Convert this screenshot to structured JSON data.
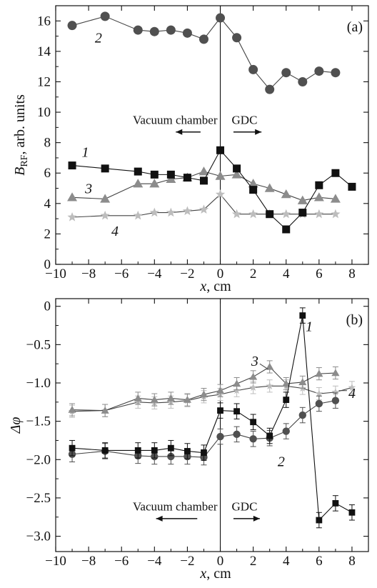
{
  "chart_data": [
    {
      "type": "line",
      "panel_label": "(a)",
      "xlabel": "x, cm",
      "ylabel_main": "B",
      "ylabel_sub": "RF",
      "ylabel_rest": ", arb. units",
      "xlim": [
        -10,
        9
      ],
      "ylim": [
        0,
        17
      ],
      "xticks": [
        -10,
        -8,
        -6,
        -4,
        -2,
        0,
        2,
        4,
        6,
        8
      ],
      "yticks": [
        0,
        2,
        4,
        6,
        8,
        10,
        12,
        14,
        16
      ],
      "xtick_labels": [
        "−10",
        "−8",
        "−6",
        "−4",
        "−2",
        "0",
        "2",
        "4",
        "6",
        "8"
      ],
      "ytick_labels": [
        "0",
        "2",
        "4",
        "6",
        "8",
        "10",
        "12",
        "14",
        "16"
      ],
      "vline_x": 0,
      "annotations": {
        "left_text": "Vacuum chamber",
        "right_text": "GDC",
        "left_arrow_x": [
          -1.2,
          -2.7
        ],
        "right_arrow_x": [
          0.8,
          2.5
        ],
        "text_y": 9.5,
        "arrow_y": 8.7
      },
      "series": [
        {
          "label": "1",
          "marker": "square",
          "color": "#111111",
          "x": [
            -9,
            -7,
            -5,
            -4,
            -3,
            -2,
            -1,
            0,
            1,
            2,
            3,
            4,
            5,
            6,
            7,
            8
          ],
          "y": [
            6.5,
            6.3,
            6.1,
            5.9,
            5.9,
            5.7,
            5.5,
            7.5,
            6.3,
            4.9,
            3.3,
            2.3,
            3.4,
            5.2,
            6.0,
            5.1
          ],
          "label_pos": [
            -8.2,
            7.4
          ]
        },
        {
          "label": "2",
          "marker": "circle",
          "color": "#505050",
          "x": [
            -9,
            -7,
            -5,
            -4,
            -3,
            -2,
            -1,
            0,
            1,
            2,
            3,
            4,
            5,
            6,
            7
          ],
          "y": [
            15.7,
            16.3,
            15.4,
            15.3,
            15.4,
            15.2,
            14.8,
            16.2,
            14.9,
            12.8,
            11.5,
            12.6,
            12.0,
            12.7,
            12.6
          ],
          "label_pos": [
            -7.4,
            14.9
          ]
        },
        {
          "label": "3",
          "marker": "triangle",
          "color": "#8c8c8c",
          "x": [
            -9,
            -7,
            -5,
            -4,
            -3,
            -2,
            -1,
            0,
            1,
            2,
            3,
            4,
            5,
            6,
            7
          ],
          "y": [
            4.4,
            4.3,
            5.3,
            5.3,
            5.6,
            5.7,
            6.1,
            5.8,
            5.9,
            5.3,
            5.0,
            4.6,
            4.2,
            4.4,
            4.3
          ],
          "label_pos": [
            -8.0,
            5.0
          ]
        },
        {
          "label": "4",
          "marker": "star",
          "color": "#bdbdbd",
          "x": [
            -9,
            -7,
            -5,
            -4,
            -3,
            -2,
            -1,
            0,
            1,
            2,
            3,
            4,
            5,
            6,
            7
          ],
          "y": [
            3.1,
            3.2,
            3.2,
            3.4,
            3.4,
            3.5,
            3.6,
            4.6,
            3.3,
            3.3,
            3.3,
            3.3,
            3.3,
            3.3,
            3.3
          ],
          "label_pos": [
            -6.4,
            2.2
          ]
        }
      ]
    },
    {
      "type": "line",
      "panel_label": "(b)",
      "xlabel": "x, cm",
      "ylabel_main": "Δφ",
      "xlim": [
        -10,
        9
      ],
      "ylim": [
        -3.2,
        0.1
      ],
      "xticks": [
        -10,
        -8,
        -6,
        -4,
        -2,
        0,
        2,
        4,
        6,
        8
      ],
      "yticks": [
        0,
        -0.5,
        -1.0,
        -1.5,
        -2.0,
        -2.5,
        -3.0
      ],
      "xtick_labels": [
        "−10",
        "−8",
        "−6",
        "−4",
        "−2",
        "0",
        "2",
        "4",
        "6",
        "8"
      ],
      "ytick_labels": [
        "0",
        "−0.5",
        "−1.0",
        "−1.5",
        "−2.0",
        "−2.5",
        "−3.0"
      ],
      "vline_x": 0,
      "annotations": {
        "left_text": "Vacuum chamber",
        "right_text": "GDC",
        "left_arrow_x": [
          -1.4,
          -3.9
        ],
        "right_arrow_x": [
          0.8,
          2.4
        ],
        "text_y": -2.61,
        "arrow_y": -2.77
      },
      "series": [
        {
          "label": "1",
          "marker": "square",
          "color": "#111111",
          "x": [
            -9,
            -7,
            -5,
            -4,
            -3,
            -2,
            -1,
            0,
            1,
            2,
            3,
            4,
            5,
            6,
            7,
            8
          ],
          "y": [
            -1.85,
            -1.88,
            -1.88,
            -1.88,
            -1.85,
            -1.89,
            -1.91,
            -1.36,
            -1.37,
            -1.51,
            -1.69,
            -1.22,
            -0.12,
            -2.79,
            -2.57,
            -2.69
          ],
          "err": 0.1,
          "label_pos": [
            5.4,
            -0.26
          ]
        },
        {
          "label": "2",
          "marker": "circle",
          "color": "#505050",
          "x": [
            -9,
            -7,
            -5,
            -4,
            -3,
            -2,
            -1,
            0,
            1,
            2,
            3,
            4,
            5,
            6,
            7
          ],
          "y": [
            -1.93,
            -1.89,
            -1.95,
            -1.96,
            -1.96,
            -1.96,
            -1.97,
            -1.7,
            -1.67,
            -1.73,
            -1.72,
            -1.63,
            -1.42,
            -1.27,
            -1.23
          ],
          "err": 0.1,
          "label_pos": [
            3.7,
            -2.02
          ]
        },
        {
          "label": "3",
          "marker": "triangle",
          "color": "#8c8c8c",
          "x": [
            -9,
            -7,
            -5,
            -4,
            -3,
            -2,
            -1,
            0,
            1,
            2,
            3,
            4,
            5,
            6,
            7
          ],
          "y": [
            -1.35,
            -1.36,
            -1.2,
            -1.22,
            -1.2,
            -1.22,
            -1.15,
            -1.1,
            -1.01,
            -0.92,
            -0.79,
            -1.01,
            -0.99,
            -0.88,
            -0.87
          ],
          "err": 0.08,
          "label_pos": [
            2.1,
            -0.71
          ]
        },
        {
          "label": "4",
          "marker": "star",
          "color": "#bdbdbd",
          "x": [
            -9,
            -7,
            -5,
            -4,
            -3,
            -2,
            -1,
            0,
            1,
            2,
            3,
            4,
            5,
            6,
            7,
            8
          ],
          "y": [
            -1.37,
            -1.36,
            -1.25,
            -1.26,
            -1.25,
            -1.23,
            -1.18,
            -1.15,
            -1.1,
            -1.06,
            -1.04,
            -1.04,
            -1.07,
            -1.14,
            -1.12,
            -1.06
          ],
          "err": 0.08,
          "label_pos": [
            8.0,
            -1.13
          ]
        }
      ]
    }
  ]
}
